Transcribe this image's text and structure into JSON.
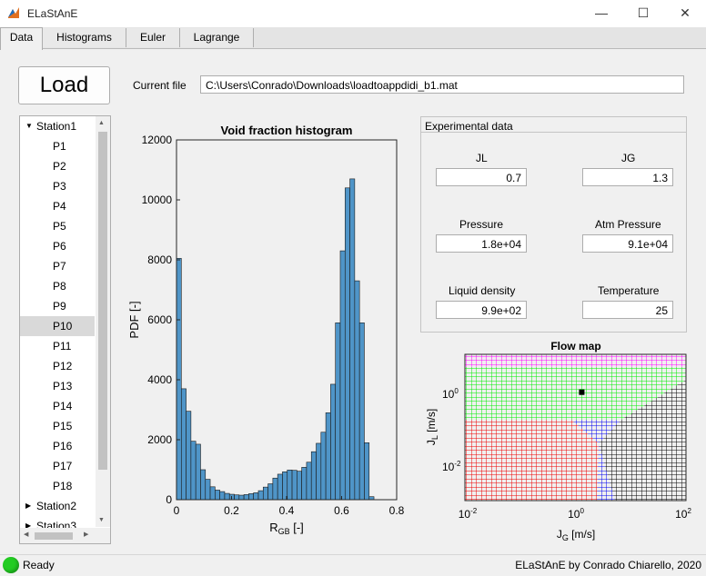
{
  "window": {
    "title": "ELaStAnE",
    "minimize": "—",
    "maximize": "☐",
    "close": "✕"
  },
  "tabs": [
    {
      "label": "Data"
    },
    {
      "label": "Histograms"
    },
    {
      "label": "Euler"
    },
    {
      "label": "Lagrange"
    }
  ],
  "load_button": "Load",
  "current_file": {
    "label": "Current file",
    "value": "C:\\Users\\Conrado\\Downloads\\loadtoappdidi_b1.mat"
  },
  "tree": {
    "station1": "Station1",
    "items": [
      "P1",
      "P2",
      "P3",
      "P4",
      "P5",
      "P6",
      "P7",
      "P8",
      "P9",
      "P10",
      "P11",
      "P12",
      "P13",
      "P14",
      "P15",
      "P16",
      "P17",
      "P18"
    ],
    "selected": "P10",
    "station2": "Station2",
    "station3": "Station3"
  },
  "experimental": {
    "title": "Experimental data",
    "jl_label": "JL",
    "jl_value": "0.7",
    "jg_label": "JG",
    "jg_value": "1.3",
    "pressure_label": "Pressure",
    "pressure_value": "1.8e+04",
    "atm_label": "Atm Pressure",
    "atm_value": "9.1e+04",
    "density_label": "Liquid density",
    "density_value": "9.9e+02",
    "temp_label": "Temperature",
    "temp_value": "25"
  },
  "histogram": {
    "title": "Void fraction histogram",
    "ylabel": "PDF [-]",
    "xlabel_main": "R",
    "xlabel_sub": "GB",
    "xlabel_unit": " [-]",
    "color": "#4f95c8"
  },
  "chart_data": [
    {
      "type": "bar",
      "title": "Void fraction histogram",
      "xlabel": "RGB [-]",
      "ylabel": "PDF [-]",
      "xlim": [
        0,
        0.8
      ],
      "ylim": [
        0,
        12000
      ],
      "xticks": [
        "0",
        "0.2",
        "0.4",
        "0.6",
        "0.8"
      ],
      "yticks": [
        "0",
        "2000",
        "4000",
        "6000",
        "8000",
        "10000",
        "12000"
      ],
      "bin_width": 0.0175,
      "bin_start": 0,
      "values": [
        8050,
        3700,
        2950,
        1950,
        1850,
        1000,
        680,
        430,
        320,
        270,
        210,
        180,
        160,
        150,
        170,
        200,
        230,
        300,
        420,
        530,
        720,
        850,
        930,
        990,
        980,
        950,
        1080,
        1250,
        1600,
        1880,
        2250,
        2900,
        3850,
        5900,
        8300,
        10400,
        10700,
        7300,
        5900,
        1900,
        100
      ]
    },
    {
      "type": "heatmap",
      "title": "Flow map",
      "xlabel": "JG [m/s]",
      "ylabel": "JL [m/s]",
      "x_scale": "log",
      "y_scale": "log",
      "xlim": [
        0.01,
        100
      ],
      "ylim": [
        0.0015,
        6
      ],
      "xticks": [
        "10-2",
        "10^0",
        "10^2"
      ],
      "yticks": [
        "10-2",
        "10^0"
      ],
      "regions": [
        {
          "color": "#ff00ff"
        },
        {
          "color": "#00ff00"
        },
        {
          "color": "#ff0000"
        },
        {
          "color": "#0000ff"
        },
        {
          "color": "#000000"
        }
      ],
      "point": {
        "x": 1.3,
        "y": 0.7,
        "color": "#000000"
      }
    }
  ],
  "flowmap": {
    "title": "Flow map",
    "xlabel_main": "J",
    "xlabel_sub": "G",
    "xlabel_unit": " [m/s]",
    "ylabel_main": "J",
    "ylabel_sub": "L",
    "ylabel_unit": " [m/s]"
  },
  "status": {
    "text": "Ready",
    "credit": "ELaStAnE by Conrado Chiarello, 2020",
    "indicator_color": "#22cc22"
  }
}
